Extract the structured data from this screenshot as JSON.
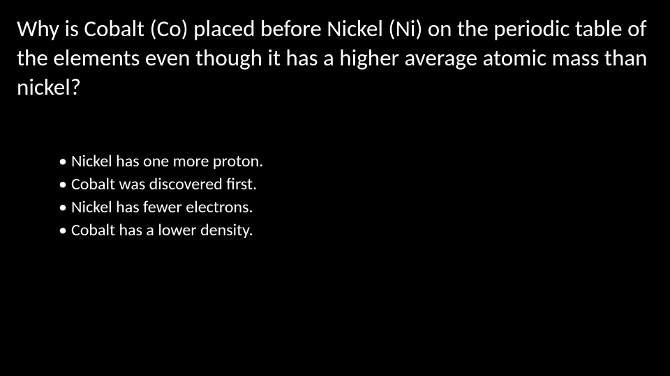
{
  "slide": {
    "background_color": "#000000",
    "text_color": "#ffffff",
    "question": {
      "text": "Why is Cobalt (Co) placed before Nickel (Ni) on the periodic table of the elements even though it has a higher average atomic mass than nickel?",
      "fontsize": 33,
      "font_weight": 400
    },
    "options": {
      "fontsize": 24,
      "bullet": "•",
      "items": [
        "Nickel has one more proton.",
        "Cobalt was discovered first.",
        "Nickel has fewer electrons.",
        "Cobalt has a lower density."
      ]
    }
  }
}
